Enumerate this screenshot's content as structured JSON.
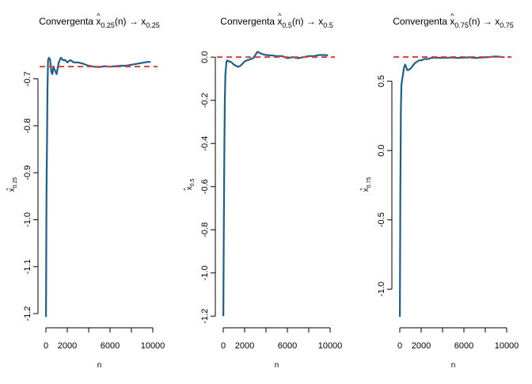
{
  "chart_data": [
    {
      "type": "line",
      "title": {
        "pre": "Convergenta ",
        "var": "x",
        "hat": "^",
        "sub": "0.25",
        "mid": "(n) → ",
        "var2": "x",
        "sub2": "0.25"
      },
      "xlabel": "n",
      "ylabel": {
        "var": "x",
        "hat": "^",
        "sub": "0.25"
      },
      "xlim": [
        0,
        10000
      ],
      "ylim": [
        -1.21,
        -0.64
      ],
      "xticks": [
        0,
        2000,
        6000,
        10000
      ],
      "xtick_labels": [
        "0",
        "2000",
        "6000",
        "10000"
      ],
      "yticks": [
        -1.2,
        -1.1,
        -1.0,
        -0.9,
        -0.8,
        -0.7
      ],
      "ytick_labels": [
        "-1.2",
        "-1.1",
        "-1.0",
        "-0.9",
        "-0.8",
        "-0.7"
      ],
      "reference_line": {
        "y": -0.674,
        "color": "#d9433a",
        "style": "dashed"
      },
      "series": [
        {
          "color": "#1f5f8a",
          "x": [
            10,
            50,
            100,
            150,
            200,
            300,
            400,
            500,
            600,
            700,
            800,
            1000,
            1200,
            1400,
            1600,
            1800,
            2000,
            2300,
            2600,
            3000,
            3500,
            4000,
            4500,
            5000,
            5500,
            6000,
            6500,
            7000,
            7500,
            8000,
            8500,
            9000,
            9500,
            9800
          ],
          "y": [
            -1.207,
            -0.95,
            -0.83,
            -0.72,
            -0.66,
            -0.655,
            -0.66,
            -0.685,
            -0.69,
            -0.675,
            -0.68,
            -0.69,
            -0.665,
            -0.655,
            -0.66,
            -0.66,
            -0.665,
            -0.66,
            -0.665,
            -0.665,
            -0.668,
            -0.672,
            -0.674,
            -0.675,
            -0.673,
            -0.674,
            -0.673,
            -0.672,
            -0.672,
            -0.67,
            -0.668,
            -0.666,
            -0.664,
            -0.664
          ]
        }
      ]
    },
    {
      "type": "line",
      "title": {
        "pre": "Convergenta ",
        "var": "x",
        "hat": "^",
        "sub": "0.5",
        "mid": "(n) → ",
        "var2": "x",
        "sub2": "0.5"
      },
      "xlabel": "n",
      "ylabel": {
        "var": "x",
        "hat": "^",
        "sub": "0.5"
      },
      "xlim": [
        0,
        10000
      ],
      "ylim": [
        -1.21,
        0.03
      ],
      "xticks": [
        0,
        2000,
        6000,
        10000
      ],
      "xtick_labels": [
        "0",
        "2000",
        "6000",
        "10000"
      ],
      "yticks": [
        -1.2,
        -1.0,
        -0.8,
        -0.6,
        -0.4,
        -0.2,
        0.0
      ],
      "ytick_labels": [
        "-1.2",
        "-1.0",
        "-0.8",
        "-0.6",
        "-0.4",
        "-0.2",
        "0.0"
      ],
      "reference_line": {
        "y": 0.0,
        "color": "#d9433a",
        "style": "dashed"
      },
      "series": [
        {
          "color": "#1f5f8a",
          "x": [
            10,
            50,
            100,
            150,
            200,
            300,
            400,
            500,
            600,
            800,
            1000,
            1200,
            1400,
            1600,
            1800,
            2000,
            2200,
            2500,
            2800,
            3000,
            3200,
            3400,
            3600,
            4000,
            4500,
            5000,
            5500,
            6000,
            6500,
            7000,
            7500,
            8000,
            8500,
            9000,
            9500,
            9800
          ],
          "y": [
            -1.2,
            -0.8,
            -0.42,
            -0.2,
            -0.08,
            -0.02,
            -0.015,
            -0.02,
            -0.02,
            -0.025,
            -0.035,
            -0.04,
            -0.045,
            -0.04,
            -0.03,
            -0.02,
            -0.015,
            -0.01,
            -0.005,
            0.01,
            0.025,
            0.02,
            0.015,
            0.01,
            0.008,
            0.005,
            0.005,
            -0.005,
            0.0,
            -0.005,
            0.0,
            0.005,
            0.005,
            0.01,
            0.01,
            0.008
          ]
        }
      ]
    },
    {
      "type": "line",
      "title": {
        "pre": "Convergenta ",
        "var": "x",
        "hat": "^",
        "sub": "0.75",
        "mid": "(n) → ",
        "var2": "x",
        "sub2": "0.75"
      },
      "xlabel": "n",
      "ylabel": {
        "var": "x",
        "hat": "^",
        "sub": "0.75"
      },
      "xlim": [
        0,
        10000
      ],
      "ylim": [
        -1.21,
        0.72
      ],
      "xticks": [
        0,
        2000,
        6000,
        10000
      ],
      "xtick_labels": [
        "0",
        "2000",
        "6000",
        "10000"
      ],
      "yticks": [
        -1.0,
        -0.5,
        0.0,
        0.5
      ],
      "ytick_labels": [
        "-1.0",
        "-0.5",
        "0.0",
        "0.5"
      ],
      "reference_line": {
        "y": 0.674,
        "color": "#d9433a",
        "style": "dashed"
      },
      "series": [
        {
          "color": "#1f5f8a",
          "x": [
            10,
            50,
            100,
            150,
            200,
            300,
            400,
            500,
            600,
            700,
            800,
            1000,
            1200,
            1400,
            1600,
            1800,
            2000,
            2300,
            2600,
            3000,
            3500,
            4000,
            4500,
            5000,
            5500,
            6000,
            6500,
            7000,
            7500,
            8000,
            8500,
            9000,
            9500,
            9800
          ],
          "y": [
            -1.2,
            -0.3,
            0.3,
            0.47,
            0.5,
            0.55,
            0.6,
            0.62,
            0.6,
            0.58,
            0.58,
            0.59,
            0.61,
            0.63,
            0.64,
            0.65,
            0.65,
            0.66,
            0.66,
            0.668,
            0.67,
            0.668,
            0.67,
            0.67,
            0.668,
            0.67,
            0.672,
            0.668,
            0.67,
            0.672,
            0.675,
            0.678,
            0.675,
            0.672
          ]
        }
      ]
    }
  ]
}
